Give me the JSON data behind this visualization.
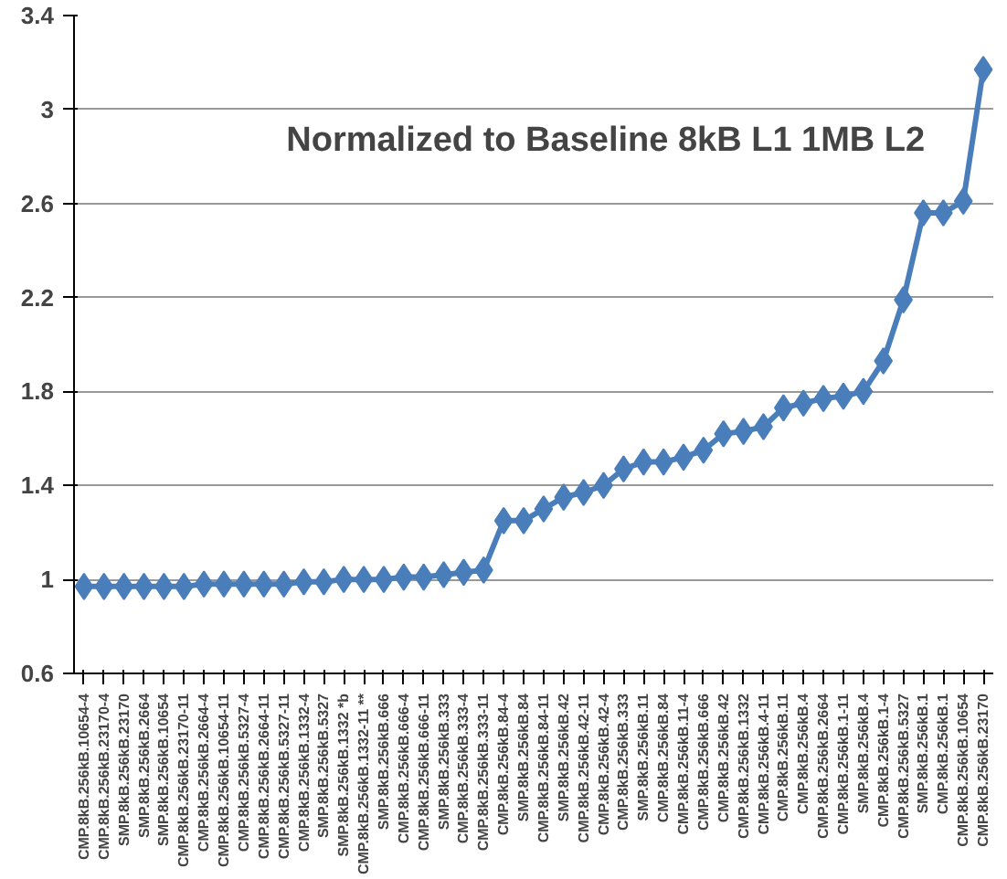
{
  "chart_data": {
    "type": "line",
    "title": "Normalized to Baseline 8kB L1 1MB L2",
    "categories": [
      "CMP.8kB.256kB.10654-4",
      "CMP.8kB.256kB.23170-4",
      "SMP.8kB.256kB.23170",
      "SMP.8kB.256kB.2664",
      "SMP.8kB.256kB.10654",
      "CMP.8kB.256kB.23170-11",
      "CMP.8kB.256kB.2664-4",
      "CMP.8kB.256kB.10654-11",
      "CMP.8kB.256kB.5327-4",
      "CMP.8kB.256kB.2664-11",
      "CMP.8kB.256kB.5327-11",
      "CMP.8kB.256kB.1332-4",
      "SMP.8kB.256kB.5327",
      "SMP.8kB.256kB.1332 *b",
      "CMP.8kB.256kB.1332-11 **",
      "SMP.8kB.256kB.666",
      "CMP.8kB.256kB.666-4",
      "CMP.8kB.256kB.666-11",
      "SMP.8kB.256kB.333",
      "CMP.8kB.256kB.333-4",
      "CMP.8kB.256kB.333-11",
      "CMP.8kB.256kB.84-4",
      "SMP.8kB.256kB.84",
      "CMP.8kB.256kB.84-11",
      "SMP.8kB.256kB.42",
      "CMP.8kB.256kB.42-11",
      "CMP.8kB.256kB.42-4",
      "CMP.8kB.256kB.333",
      "SMP.8kB.256kB.11",
      "CMP.8kB.256kB.84",
      "CMP.8kB.256kB.11-4",
      "CMP.8kB.256kB.666",
      "CMP.8kB.256kB.42",
      "CMP.8kB.256kB.1332",
      "CMP.8kB.256kB.4-11",
      "CMP.8kB.256kB.11",
      "CMP.8kB.256kB.4",
      "CMP.8kB.256kB.2664",
      "CMP.8kB.256kB.1-11",
      "SMP.8kB.256kB.4",
      "CMP.8kB.256kB.1-4",
      "CMP.8kB.256kB.5327",
      "SMP.8kB.256kB.1",
      "CMP.8kB.256kB.1",
      "CMP.8kB.256kB.10654",
      "CMP.8kB.256kB.23170"
    ],
    "series": [
      {
        "color": "#4a7ebb",
        "values": [
          0.97,
          0.97,
          0.97,
          0.97,
          0.97,
          0.97,
          0.98,
          0.98,
          0.98,
          0.98,
          0.98,
          0.99,
          0.99,
          1.0,
          1.0,
          1.0,
          1.01,
          1.01,
          1.02,
          1.03,
          1.04,
          1.25,
          1.25,
          1.3,
          1.35,
          1.37,
          1.4,
          1.47,
          1.5,
          1.5,
          1.52,
          1.55,
          1.62,
          1.63,
          1.65,
          1.73,
          1.75,
          1.77,
          1.78,
          1.8,
          1.93,
          2.19,
          2.56,
          2.56,
          2.61,
          3.17
        ]
      }
    ],
    "ylim": [
      0.6,
      3.4
    ],
    "yticks": [
      0.6,
      1,
      1.4,
      1.8,
      2.2,
      2.6,
      3,
      3.4
    ],
    "grid": "y",
    "marker": "diamond",
    "line_style": "solid"
  }
}
